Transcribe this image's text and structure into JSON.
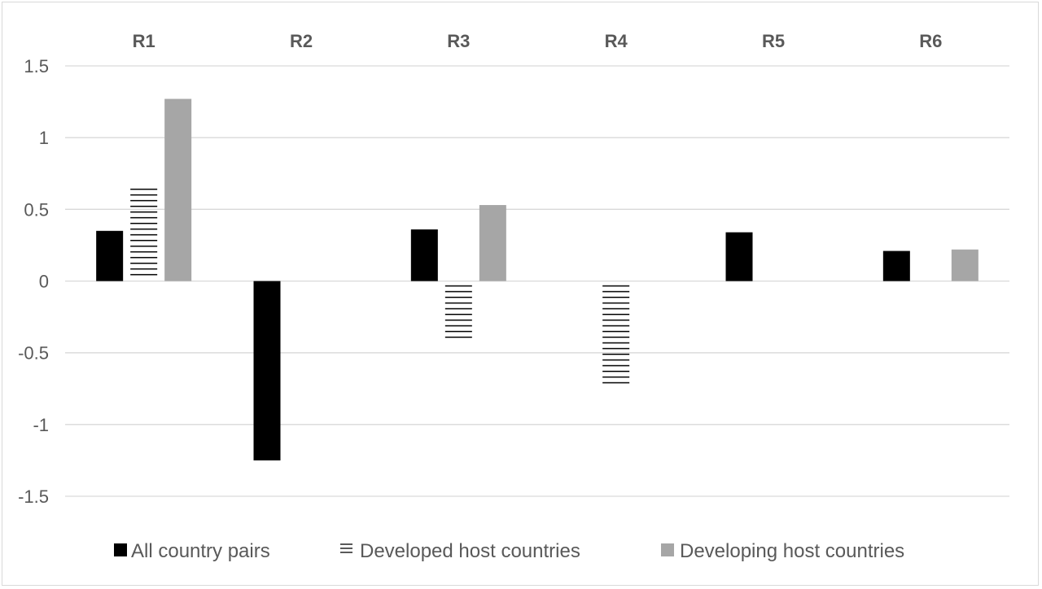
{
  "chart_data": {
    "type": "bar",
    "categories": [
      "R1",
      "R2",
      "R3",
      "R4",
      "R5",
      "R6"
    ],
    "series": [
      {
        "name": "All country pairs",
        "values": [
          0.35,
          -1.25,
          0.36,
          null,
          0.34,
          0.21
        ],
        "color": "#000000",
        "pattern": "solid"
      },
      {
        "name": "Developed host countries",
        "values": [
          0.64,
          null,
          -0.41,
          -0.73,
          null,
          null
        ],
        "color": "#000000",
        "pattern": "horizontal-lines"
      },
      {
        "name": "Developing host countries",
        "values": [
          1.27,
          null,
          0.53,
          null,
          null,
          0.22
        ],
        "color": "#a6a6a6",
        "pattern": "solid"
      }
    ],
    "yticks": [
      "1.5",
      "1",
      "0.5",
      "0",
      "-0.5",
      "-1",
      "-1.5"
    ],
    "ylim": [
      -1.5,
      1.5
    ],
    "grid": true,
    "legend_position": "bottom",
    "category_labels_position": "top"
  }
}
